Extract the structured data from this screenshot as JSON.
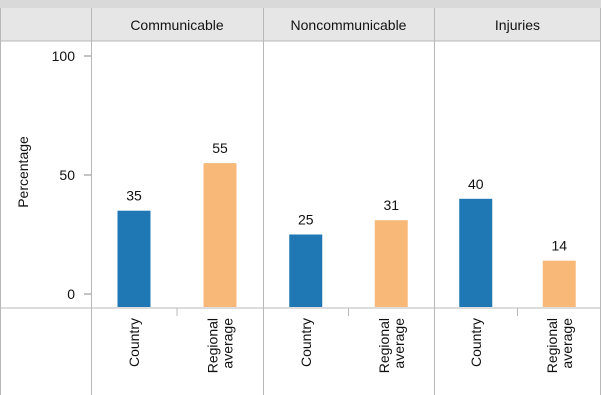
{
  "chart_data": {
    "type": "bar",
    "ylabel": "Percentage",
    "ylim": [
      0,
      100
    ],
    "yticks": [
      0,
      50,
      100
    ],
    "grid": false,
    "categories": [
      "Country",
      "Regional average"
    ],
    "category_labels": [
      [
        "Country"
      ],
      [
        "Regional",
        "average"
      ]
    ],
    "panels": [
      {
        "title": "Communicable",
        "values": [
          35,
          55
        ]
      },
      {
        "title": "Noncommunicable",
        "values": [
          25,
          31
        ]
      },
      {
        "title": "Injuries",
        "values": [
          40,
          14
        ]
      }
    ],
    "colors": {
      "country": "#1f77b4",
      "regional": "#f8b878",
      "border": "#b8b8b8",
      "header_bg": "#e6e6e6",
      "top_band": "#d9d9d9"
    }
  }
}
